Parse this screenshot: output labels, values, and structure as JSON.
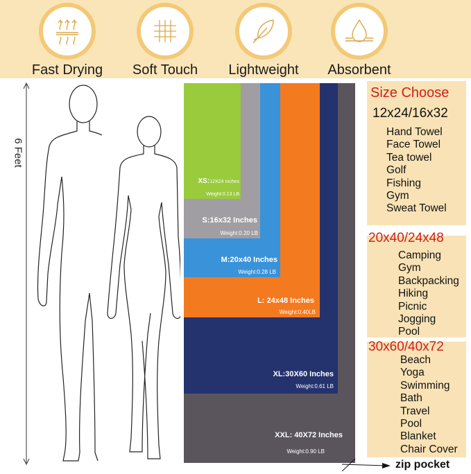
{
  "features": [
    {
      "label": "Fast Drying",
      "icon": "heat-waves-icon"
    },
    {
      "label": "Soft Touch",
      "icon": "woven-fabric-icon"
    },
    {
      "label": "Lightweight",
      "icon": "feather-icon"
    },
    {
      "label": "Absorbent",
      "icon": "water-drop-icon"
    }
  ],
  "height_label": "6 Feet",
  "towels": [
    {
      "size": "XXL: 40X72 Inches",
      "weight": "Weight:0.90 LB",
      "color": "#5a555d"
    },
    {
      "size": "XL:30X60 Inches",
      "weight": "Weight:0.61 LB",
      "color": "#24336e"
    },
    {
      "size": "L: 24x48 Inches",
      "weight": "Weight:0.40LB",
      "color": "#f47a20"
    },
    {
      "size": "M:20x40 Inches",
      "weight": "Weight:0.28 LB",
      "color": "#3a92d8"
    },
    {
      "size": "S:16x32 Inches",
      "weight": "Weight:0.20 LB",
      "color": "#a19ea3"
    },
    {
      "size_prefix": "XS:",
      "size": "12X24 Inches",
      "weight": "Weight:0.13 LB",
      "color": "#99cb3c"
    }
  ],
  "size_panel": {
    "title": "Size Choose",
    "groups": [
      {
        "header": "12x24/16x32",
        "items": [
          "Hand Towel",
          "Face Towel",
          "Tea towel",
          "Golf",
          "Fishing",
          "Gym",
          "Sweat Towel"
        ]
      },
      {
        "header": "20x40/24x48",
        "items": [
          "Camping",
          "Gym",
          "Backpacking",
          "Hiking",
          "Picnic",
          "Jogging",
          "Pool"
        ]
      },
      {
        "header": "30x60/40x72",
        "items": [
          "Beach",
          "Yoga",
          "Swimming",
          "Bath",
          "Travel",
          "Pool",
          "Blanket",
          "Chair Cover"
        ]
      }
    ]
  },
  "zip_pocket": "zip pocket",
  "colors": {
    "accent_red": "#d0201a",
    "band": "#fae5b8",
    "ring": "#f3c977"
  }
}
